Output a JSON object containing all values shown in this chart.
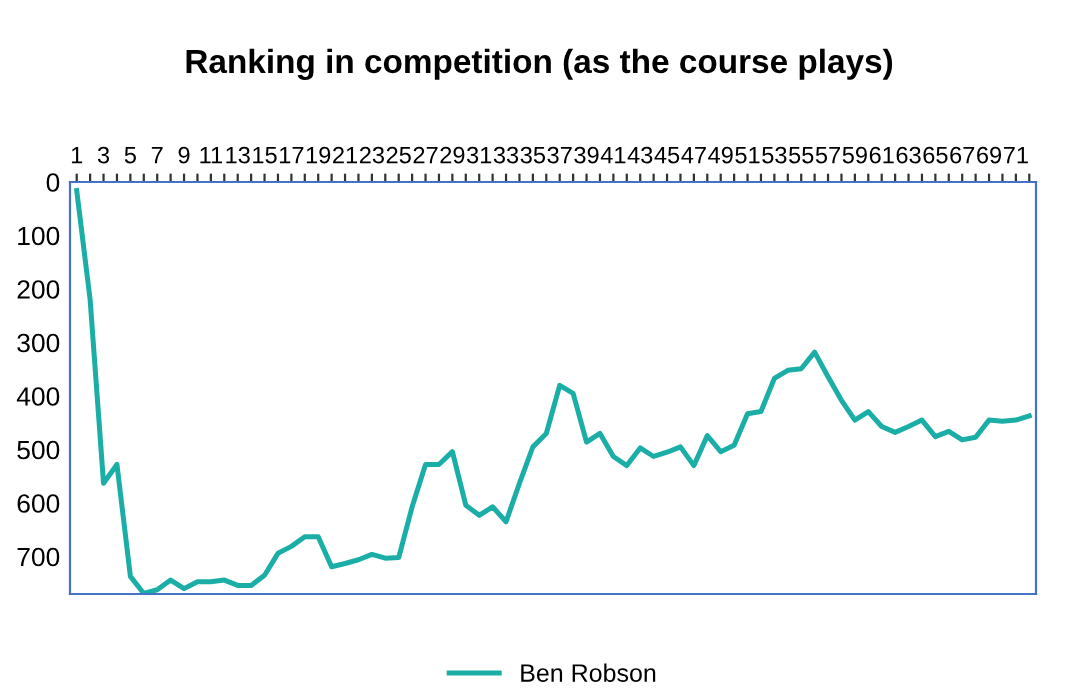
{
  "chart_data": {
    "type": "line",
    "title": "Ranking in competition (as the course plays)",
    "categories": [
      "1",
      null,
      "3",
      null,
      "5",
      null,
      "7",
      null,
      "9",
      null,
      "11",
      null,
      "13",
      null,
      "15",
      null,
      "17",
      null,
      "19",
      null,
      "21",
      null,
      "23",
      null,
      "25",
      null,
      "27",
      null,
      "29",
      null,
      "31",
      null,
      "33",
      null,
      "35",
      null,
      "37",
      null,
      "39",
      null,
      "41",
      null,
      "43",
      null,
      "45",
      null,
      "47",
      null,
      "49",
      null,
      "51",
      null,
      "53",
      null,
      "55",
      null,
      "57",
      null,
      "59",
      null,
      "61",
      null,
      "63",
      null,
      "65",
      null,
      "67",
      null,
      "69",
      null,
      "71",
      null
    ],
    "series": [
      {
        "name": "Ben Robson",
        "color": "#1aaea6",
        "values": [
          16,
          220,
          563,
          528,
          737,
          769,
          762,
          744,
          760,
          747,
          747,
          744,
          754,
          754,
          735,
          694,
          681,
          663,
          663,
          719,
          713,
          706,
          696,
          703,
          702,
          607,
          528,
          528,
          504,
          604,
          623,
          607,
          635,
          563,
          495,
          470,
          380,
          395,
          486,
          470,
          513,
          530,
          497,
          513,
          505,
          495,
          530,
          474,
          504,
          492,
          433,
          429,
          367,
          352,
          349,
          318,
          364,
          408,
          445,
          429,
          457,
          468,
          457,
          445,
          476,
          466,
          482,
          477,
          445,
          447,
          445,
          437
        ]
      }
    ],
    "ylim": [
      770,
      0
    ],
    "yticks": [
      0,
      100,
      200,
      300,
      400,
      500,
      600,
      700
    ],
    "grid": false,
    "legend": "bottom",
    "marker": "none",
    "line_style": "solid"
  }
}
